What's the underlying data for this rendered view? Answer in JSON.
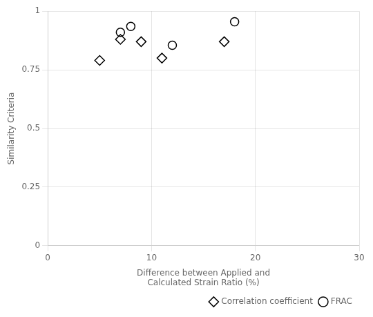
{
  "chart_data": {
    "type": "scatter",
    "xlabel": "Difference between Applied and\nCalculated Strain Ratio (%)",
    "ylabel": "Similarity Criteria",
    "series": [
      {
        "name": "Correlation coefficient",
        "color": "#000000",
        "marker": "diamond",
        "x": [
          5,
          7,
          9,
          11,
          17
        ],
        "values": [
          0.79,
          0.88,
          0.87,
          0.8,
          0.87
        ]
      },
      {
        "name": "FRAC",
        "color": "#000000",
        "marker": "circle",
        "x": [
          7,
          8,
          12,
          18
        ],
        "values": [
          0.91,
          0.935,
          0.855,
          0.955
        ]
      }
    ],
    "xlim": [
      0,
      30
    ],
    "xticks": [
      0,
      10,
      20,
      30
    ],
    "ylim": [
      0,
      1.0
    ],
    "yticks": [
      0,
      0.25,
      0.5,
      0.75,
      1
    ],
    "grid": true,
    "legend": "lower right"
  }
}
